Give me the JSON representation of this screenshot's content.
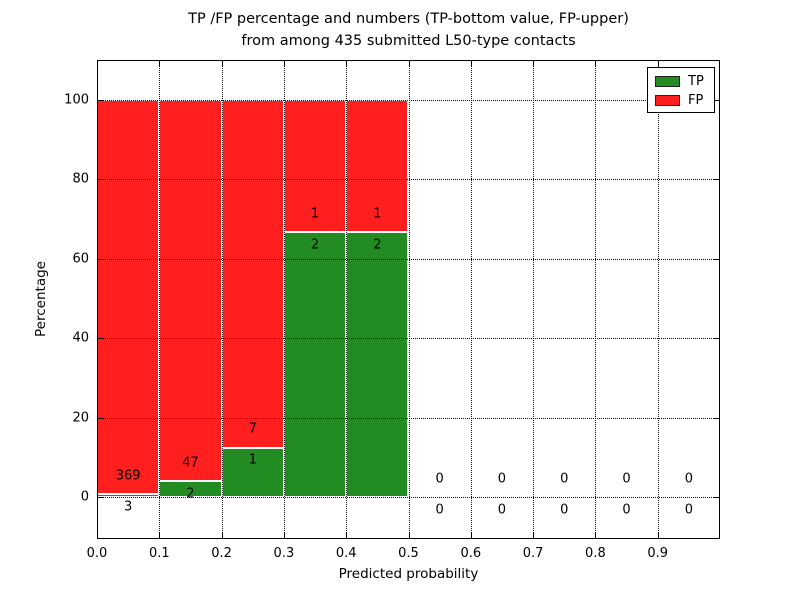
{
  "title": {
    "line1": "TP /FP percentage and numbers (TP-bottom value, FP-upper)",
    "line2": "from among 435 submitted L50-type contacts"
  },
  "chart_data": {
    "type": "bar",
    "stacked_percentage": true,
    "title": "TP /FP percentage and numbers (TP-bottom value, FP-upper) from among 435 submitted L50-type contacts",
    "xlabel": "Predicted probability",
    "ylabel": "Percentage",
    "xlim": [
      0.0,
      1.0
    ],
    "ylim": [
      -10.5,
      110
    ],
    "x_ticks": [
      "0.0",
      "0.1",
      "0.2",
      "0.3",
      "0.4",
      "0.5",
      "0.6",
      "0.7",
      "0.8",
      "0.9"
    ],
    "y_ticks": [
      0,
      20,
      40,
      60,
      80,
      100
    ],
    "grid_style": "dotted",
    "grid_on": true,
    "total_contacts": 435,
    "categories": [
      "0.0-0.1",
      "0.1-0.2",
      "0.2-0.3",
      "0.3-0.4",
      "0.4-0.5",
      "0.5-0.6",
      "0.6-0.7",
      "0.7-0.8",
      "0.8-0.9",
      "0.9-1.0"
    ],
    "series": [
      {
        "name": "TP",
        "color": "#228b22",
        "counts": [
          3,
          2,
          1,
          2,
          2,
          0,
          0,
          0,
          0,
          0
        ],
        "pct": [
          0.81,
          4.08,
          12.5,
          66.67,
          66.67,
          0,
          0,
          0,
          0,
          0
        ]
      },
      {
        "name": "FP",
        "color": "#ff1f1f",
        "counts": [
          369,
          47,
          7,
          1,
          1,
          0,
          0,
          0,
          0,
          0
        ],
        "pct": [
          99.19,
          95.92,
          87.5,
          33.33,
          33.33,
          0,
          0,
          0,
          0,
          0
        ]
      }
    ],
    "bins": [
      {
        "x0": 0.0,
        "x1": 0.1,
        "tp": 3,
        "fp": 369,
        "tp_pct": 0.81
      },
      {
        "x0": 0.1,
        "x1": 0.2,
        "tp": 2,
        "fp": 47,
        "tp_pct": 4.08
      },
      {
        "x0": 0.2,
        "x1": 0.3,
        "tp": 1,
        "fp": 7,
        "tp_pct": 12.5
      },
      {
        "x0": 0.3,
        "x1": 0.4,
        "tp": 2,
        "fp": 1,
        "tp_pct": 66.67
      },
      {
        "x0": 0.4,
        "x1": 0.5,
        "tp": 2,
        "fp": 1,
        "tp_pct": 66.67
      },
      {
        "x0": 0.5,
        "x1": 0.6,
        "tp": 0,
        "fp": 0,
        "tp_pct": 0
      },
      {
        "x0": 0.6,
        "x1": 0.7,
        "tp": 0,
        "fp": 0,
        "tp_pct": 0
      },
      {
        "x0": 0.7,
        "x1": 0.8,
        "tp": 0,
        "fp": 0,
        "tp_pct": 0
      },
      {
        "x0": 0.8,
        "x1": 0.9,
        "tp": 0,
        "fp": 0,
        "tp_pct": 0
      },
      {
        "x0": 0.9,
        "x1": 1.0,
        "tp": 0,
        "fp": 0,
        "tp_pct": 0
      }
    ],
    "legend": {
      "position": "upper right",
      "entries": [
        {
          "label": "TP",
          "color": "#228b22"
        },
        {
          "label": "FP",
          "color": "#ff1f1f"
        }
      ]
    }
  }
}
